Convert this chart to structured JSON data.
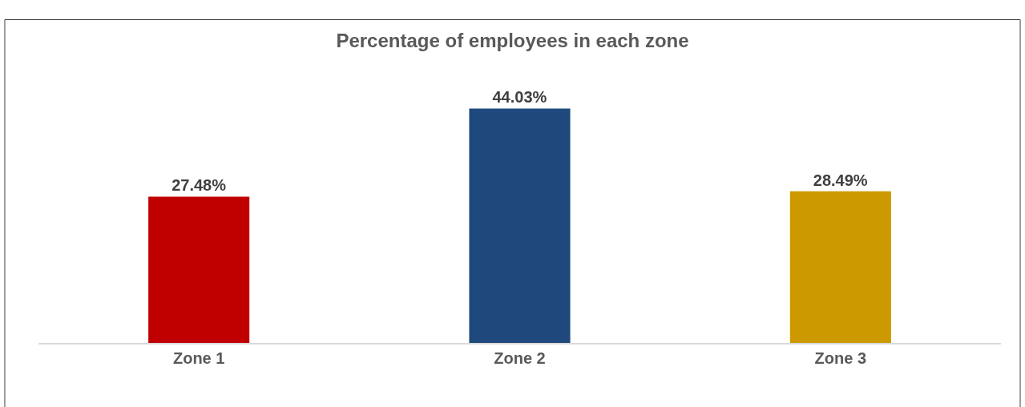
{
  "chart_data": {
    "type": "bar",
    "title": "Percentage of employees in each zone",
    "categories": [
      "Zone 1",
      "Zone 2",
      "Zone 3"
    ],
    "values": [
      27.48,
      44.03,
      28.49
    ],
    "colors": [
      "#c00000",
      "#1f497d",
      "#cc9900"
    ],
    "value_labels": [
      "27.48%",
      "44.03%",
      "28.49%"
    ]
  }
}
